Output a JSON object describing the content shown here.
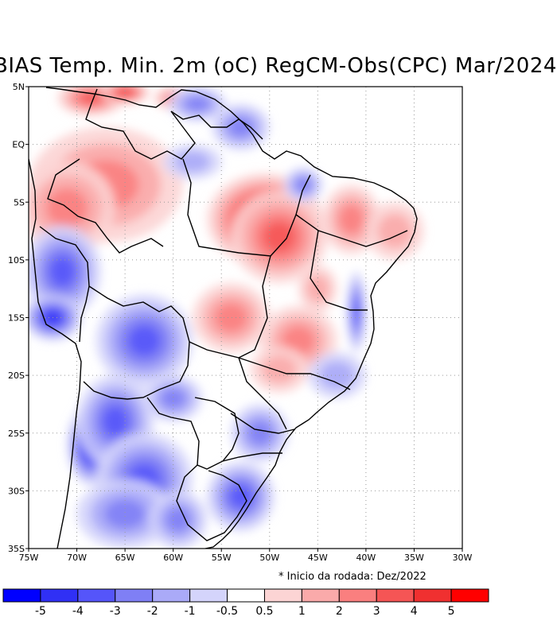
{
  "title": "BIAS Temp. Min. 2m (oC) RegCM-Obs(CPC) Mar/2024",
  "footnote": "* Inicio da rodada: Dez/2022",
  "map": {
    "lon_range": [
      -75,
      -30
    ],
    "lat_range": [
      -35,
      5
    ],
    "x_ticks": [
      "75W",
      "70W",
      "65W",
      "60W",
      "55W",
      "50W",
      "45W",
      "40W",
      "35W",
      "30W"
    ],
    "y_ticks": [
      "5N",
      "EQ",
      "5S",
      "10S",
      "15S",
      "20S",
      "25S",
      "30S",
      "35S"
    ],
    "grid_style": "dotted",
    "anomaly_regions": [
      {
        "lon": -50.5,
        "lat": -6.5,
        "bias": 5.5,
        "rx": 6,
        "ry": 4
      },
      {
        "lon": -49,
        "lat": -8,
        "bias": 3.5,
        "rx": 5,
        "ry": 4
      },
      {
        "lon": -67,
        "lat": -3.5,
        "bias": 2.5,
        "rx": 8,
        "ry": 5
      },
      {
        "lon": -71,
        "lat": -5.5,
        "bias": 2,
        "rx": 5,
        "ry": 4
      },
      {
        "lon": -68.5,
        "lat": 4,
        "bias": 3,
        "rx": 3.5,
        "ry": 1.5
      },
      {
        "lon": -65,
        "lat": 4.5,
        "bias": 4,
        "rx": 2.5,
        "ry": 1
      },
      {
        "lon": -60,
        "lat": 4,
        "bias": 2,
        "rx": 2,
        "ry": 1
      },
      {
        "lon": -41.5,
        "lat": -6.5,
        "bias": 2,
        "rx": 3,
        "ry": 3
      },
      {
        "lon": -37,
        "lat": -7.5,
        "bias": 1.5,
        "rx": 3,
        "ry": 2.5
      },
      {
        "lon": -54,
        "lat": -15,
        "bias": 2,
        "rx": 4,
        "ry": 3
      },
      {
        "lon": -47,
        "lat": -17,
        "bias": 2.5,
        "rx": 4,
        "ry": 3
      },
      {
        "lon": -49,
        "lat": -19.5,
        "bias": 1.5,
        "rx": 3,
        "ry": 2
      },
      {
        "lon": -45,
        "lat": -12.5,
        "bias": 1,
        "rx": 2,
        "ry": 2
      },
      {
        "lon": -71.5,
        "lat": -11,
        "bias": -3.5,
        "rx": 4,
        "ry": 4
      },
      {
        "lon": -72.5,
        "lat": -15,
        "bias": -4,
        "rx": 3,
        "ry": 2
      },
      {
        "lon": -63,
        "lat": -17,
        "bias": -3,
        "rx": 5,
        "ry": 4
      },
      {
        "lon": -68.5,
        "lat": -26,
        "bias": -5.5,
        "rx": 2.5,
        "ry": 3.5
      },
      {
        "lon": -66,
        "lat": -24,
        "bias": -3,
        "rx": 4,
        "ry": 4
      },
      {
        "lon": -63,
        "lat": -29,
        "bias": -3.5,
        "rx": 5,
        "ry": 4
      },
      {
        "lon": -53,
        "lat": -30.5,
        "bias": -3.5,
        "rx": 3.5,
        "ry": 3
      },
      {
        "lon": -60,
        "lat": -22,
        "bias": -2,
        "rx": 3,
        "ry": 2
      },
      {
        "lon": -51,
        "lat": -25,
        "bias": -2,
        "rx": 3,
        "ry": 2.5
      },
      {
        "lon": -46.5,
        "lat": -3.5,
        "bias": -2.5,
        "rx": 2,
        "ry": 1.5
      },
      {
        "lon": -57.5,
        "lat": 3.5,
        "bias": -2.5,
        "rx": 3,
        "ry": 1.5
      },
      {
        "lon": -53,
        "lat": 1.5,
        "bias": -2.5,
        "rx": 3,
        "ry": 2
      },
      {
        "lon": -58,
        "lat": -1.5,
        "bias": -1.5,
        "rx": 3,
        "ry": 1.5
      },
      {
        "lon": -41,
        "lat": -14.5,
        "bias": -3,
        "rx": 1,
        "ry": 3.5
      },
      {
        "lon": -43,
        "lat": -20,
        "bias": -1.5,
        "rx": 3,
        "ry": 2
      },
      {
        "lon": -65,
        "lat": -32,
        "bias": -2,
        "rx": 5,
        "ry": 3
      },
      {
        "lon": -59.5,
        "lat": -32.5,
        "bias": -2,
        "rx": 3,
        "ry": 2.5
      }
    ]
  },
  "colorbar": {
    "bin_labels": [
      "-5",
      "-4",
      "-3",
      "-2",
      "-1",
      "-0.5",
      "0.5",
      "1",
      "2",
      "3",
      "4",
      "5"
    ],
    "colors": [
      "#0000ff",
      "#3030f5",
      "#5555fa",
      "#7f7ff5",
      "#aaaaf8",
      "#d4d4fb",
      "#ffffff",
      "#fcd4d4",
      "#faaaaa",
      "#fa7f7f",
      "#f55555",
      "#f03030",
      "#ff0000"
    ]
  }
}
